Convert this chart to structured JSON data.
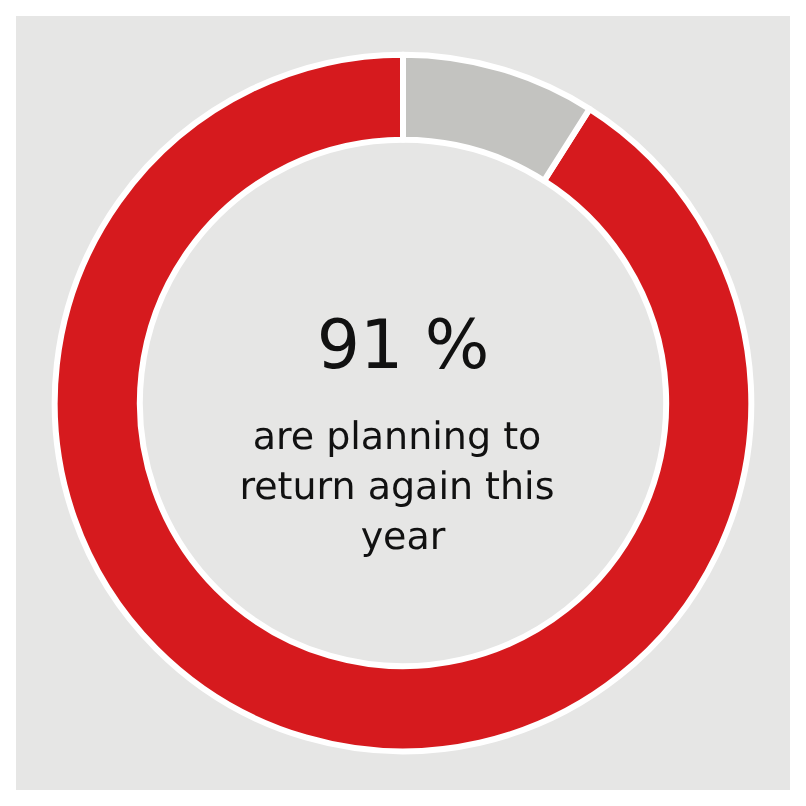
{
  "chart_data": {
    "type": "donut",
    "title": "91 %",
    "subtitle": "are planning to return again this year",
    "categories": [
      null,
      null
    ],
    "values": [
      91,
      9
    ],
    "colors": [
      "#d61a1e",
      "#c3c3c0"
    ]
  }
}
